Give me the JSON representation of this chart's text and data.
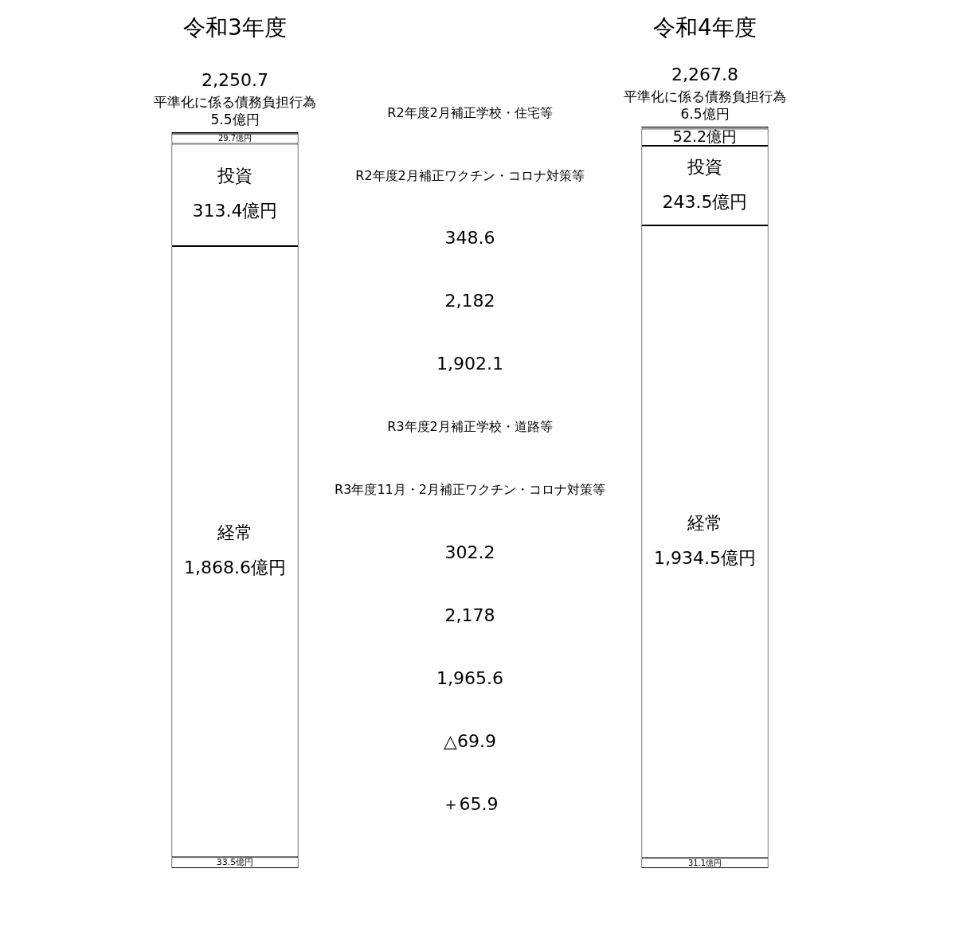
{
  "chart_data": {
    "type": "bar",
    "stacked": true,
    "categories": [
      "令和3年度",
      "令和4年度"
    ],
    "series": [
      {
        "color": "#ffffff",
        "values": [
          33.5,
          31.1
        ],
        "value_labels": [
          "33.5億円",
          "31.1億円"
        ]
      },
      {
        "name": "経常",
        "color": "#ffffff",
        "values": [
          1868.6,
          1934.5
        ],
        "value_labels": [
          "1,868.6億円",
          "1,934.5億円"
        ]
      },
      {
        "name": "投資",
        "color": "#ffffff",
        "values": [
          313.4,
          243.5
        ],
        "value_labels": [
          "313.4億円",
          "243.5億円"
        ]
      },
      {
        "color": "#ffffff",
        "values": [
          29.7,
          52.2
        ],
        "value_labels": [
          "29.7億円",
          "52.2億円"
        ]
      },
      {
        "name": "平準化に係る債務負担行為",
        "color": "#ffffff",
        "values": [
          5.5,
          6.5
        ],
        "value_labels": [
          "5.5億円",
          "6.5億円"
        ]
      }
    ],
    "totals": [
      "2,250.7",
      "2,267.8"
    ],
    "annotations": [
      "R2年度2月補正学校・住宅等",
      "R2年度2月補正ワクチン・コロナ対策等",
      "348.6",
      "2,182",
      "1,902.1",
      "R3年度2月補正学校・道路等",
      "R3年度11月・2月補正ワクチン・コロナ対策等",
      "302.2",
      "2,178",
      "1,965.6",
      "△69.9",
      "＋65.9"
    ],
    "grid": false,
    "legend": false
  }
}
